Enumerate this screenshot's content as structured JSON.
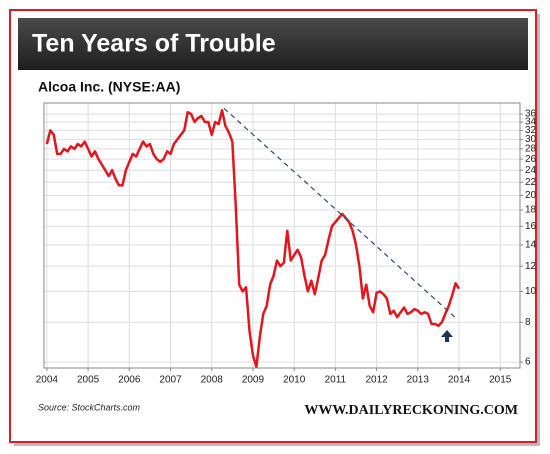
{
  "chart_data": {
    "type": "line",
    "title": "Ten Years of Trouble",
    "subtitle": "Alcoa Inc. (NYSE:AA)",
    "source": "Source: StockCharts.com",
    "footer": "WWW.DAILYRECKONING.COM",
    "log_scale_y": true,
    "grid": true,
    "y_axis_side": "right",
    "xlim": [
      2003.93,
      2015.48
    ],
    "xticks": [
      2004,
      2005,
      2006,
      2007,
      2008,
      2009,
      2010,
      2011,
      2012,
      2013,
      2014,
      2015
    ],
    "ylim": [
      5.75,
      39
    ],
    "yticks": [
      6,
      8,
      10,
      12,
      14,
      16,
      18,
      20,
      22,
      24,
      26,
      28,
      30,
      32,
      34,
      36
    ],
    "x": [
      2004,
      2004.083,
      2004.167,
      2004.25,
      2004.333,
      2004.417,
      2004.5,
      2004.583,
      2004.667,
      2004.75,
      2004.833,
      2004.917,
      2005,
      2005.083,
      2005.167,
      2005.25,
      2005.333,
      2005.417,
      2005.5,
      2005.583,
      2005.667,
      2005.75,
      2005.833,
      2005.917,
      2006,
      2006.083,
      2006.167,
      2006.25,
      2006.333,
      2006.417,
      2006.5,
      2006.583,
      2006.667,
      2006.75,
      2006.833,
      2006.917,
      2007,
      2007.083,
      2007.167,
      2007.25,
      2007.333,
      2007.417,
      2007.5,
      2007.583,
      2007.667,
      2007.75,
      2007.833,
      2007.917,
      2008,
      2008.083,
      2008.167,
      2008.25,
      2008.333,
      2008.417,
      2008.5,
      2008.583,
      2008.667,
      2008.75,
      2008.833,
      2008.917,
      2009,
      2009.083,
      2009.167,
      2009.25,
      2009.333,
      2009.417,
      2009.5,
      2009.583,
      2009.667,
      2009.75,
      2009.833,
      2009.917,
      2010,
      2010.083,
      2010.167,
      2010.25,
      2010.333,
      2010.417,
      2010.5,
      2010.583,
      2010.667,
      2010.75,
      2010.833,
      2010.917,
      2011,
      2011.083,
      2011.167,
      2011.25,
      2011.333,
      2011.417,
      2011.5,
      2011.583,
      2011.667,
      2011.75,
      2011.833,
      2011.917,
      2012,
      2012.083,
      2012.167,
      2012.25,
      2012.333,
      2012.417,
      2012.5,
      2012.583,
      2012.667,
      2012.75,
      2012.833,
      2012.917,
      2013,
      2013.083,
      2013.167,
      2013.25,
      2013.333,
      2013.417,
      2013.5,
      2013.583,
      2013.667,
      2013.75,
      2013.833,
      2013.917,
      2014
    ],
    "series": [
      {
        "color": "#e3161d",
        "values": [
          29,
          32,
          31,
          27,
          27,
          28,
          27.5,
          28.5,
          28,
          29,
          28.5,
          29.5,
          28,
          26.5,
          27.5,
          26,
          25,
          24,
          23,
          24,
          22.5,
          21.5,
          21.5,
          24,
          25.5,
          27,
          26.5,
          28,
          29.5,
          28.5,
          29,
          27,
          26,
          25.5,
          26,
          27.5,
          27,
          29,
          30,
          31,
          32,
          36.5,
          36,
          34,
          35,
          35.5,
          34,
          34,
          31,
          34,
          33.5,
          37,
          33,
          31.5,
          29.5,
          18.5,
          10.5,
          10,
          10.3,
          7.5,
          6.3,
          5.8,
          7.2,
          8.5,
          9,
          10.5,
          11.2,
          12.5,
          12,
          12.3,
          15.5,
          12.5,
          13,
          13.5,
          12.8,
          11.2,
          10,
          10.8,
          9.8,
          11,
          12.5,
          13,
          14.5,
          16,
          16.5,
          17,
          17.5,
          17,
          16.5,
          15.5,
          14,
          12,
          9.5,
          10.5,
          9,
          8.6,
          9.9,
          10,
          9.8,
          9.5,
          8.5,
          8.7,
          8.3,
          8.6,
          8.9,
          8.5,
          8.6,
          8.8,
          8.7,
          8.5,
          8.6,
          8.5,
          7.9,
          7.9,
          7.8,
          8.0,
          8.5,
          9.0,
          9.7,
          10.6,
          10.2
        ]
      }
    ],
    "trendline": {
      "color": "#2a4a6e",
      "x": [
        2008.3,
        2013.9
      ],
      "y": [
        37.5,
        8.3
      ]
    }
  }
}
